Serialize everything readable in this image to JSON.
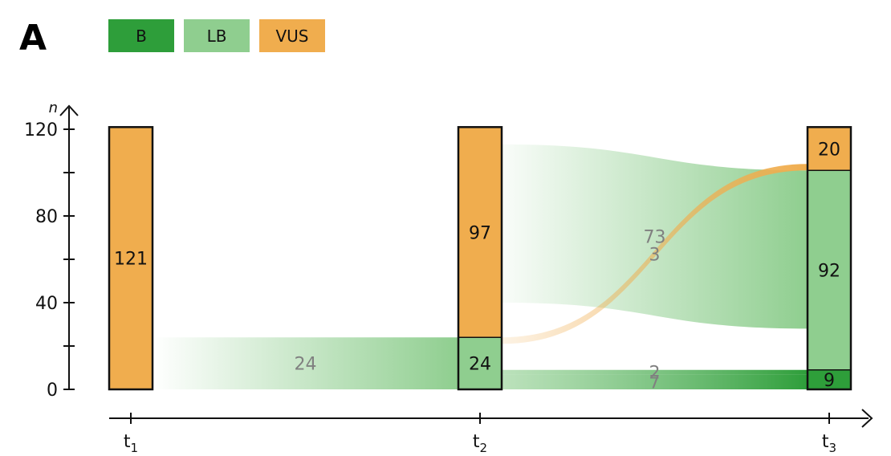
{
  "panel_label": "A",
  "legend": [
    {
      "label": "B",
      "color": "#2e9e3a"
    },
    {
      "label": "LB",
      "color": "#8fce8f"
    },
    {
      "label": "VUS",
      "color": "#f0ad4e"
    }
  ],
  "chart_data": {
    "type": "sankey",
    "ylabel": "n",
    "yticks": [
      0,
      40,
      80,
      120
    ],
    "ylim": [
      0,
      130
    ],
    "stages": [
      "t1",
      "t2",
      "t3"
    ],
    "columns": [
      {
        "stage": "t1",
        "segments": [
          {
            "class": "VUS",
            "value": 121,
            "label": "121"
          }
        ]
      },
      {
        "stage": "t2",
        "segments": [
          {
            "class": "LB",
            "value": 24,
            "label": "24"
          },
          {
            "class": "VUS",
            "value": 97,
            "label": "97"
          }
        ]
      },
      {
        "stage": "t3",
        "segments": [
          {
            "class": "B",
            "value": 9,
            "label": "9"
          },
          {
            "class": "LB",
            "value": 92,
            "label": "92"
          },
          {
            "class": "VUS",
            "value": 20,
            "label": "20"
          }
        ]
      }
    ],
    "flows": [
      {
        "from_stage": "t1",
        "from": "VUS",
        "to_stage": "t2",
        "to": "LB",
        "value": 24,
        "label": "24"
      },
      {
        "from_stage": "t2",
        "from": "VUS",
        "to_stage": "t3",
        "to": "LB",
        "value": 73,
        "label": "73"
      },
      {
        "from_stage": "t2",
        "from": "LB",
        "to_stage": "t3",
        "to": "VUS",
        "value": 3,
        "label": "3"
      },
      {
        "from_stage": "t2",
        "from": "LB",
        "to_stage": "t3",
        "to": "B",
        "value": 7,
        "label": "7"
      },
      {
        "from_stage": "t2",
        "from": "LB",
        "to_stage": "t3",
        "to": "B",
        "value": 2,
        "label": "2"
      }
    ]
  }
}
